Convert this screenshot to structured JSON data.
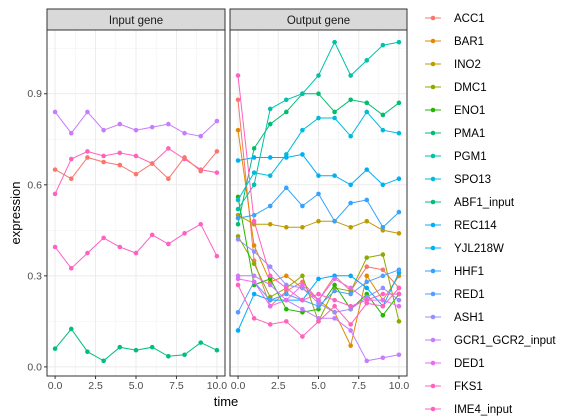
{
  "chart_data": {
    "type": "line",
    "xlabel": "time",
    "ylabel": "expression",
    "x": [
      0,
      1,
      2,
      3,
      4,
      5,
      6,
      7,
      8,
      9,
      10
    ],
    "xticks": [
      "0.0",
      "2.5",
      "5.0",
      "7.5",
      "10.0"
    ],
    "xtick_values": [
      0,
      2.5,
      5,
      7.5,
      10
    ],
    "yticks": [
      "0.0",
      "0.3",
      "0.6",
      "0.9"
    ],
    "ytick_values": [
      0,
      0.3,
      0.6,
      0.9
    ],
    "xlim": [
      -0.5,
      10.5
    ],
    "ylim": [
      -0.03,
      1.11
    ],
    "grid": true,
    "legend_position": "right",
    "facets": [
      {
        "label": "Input gene",
        "series": [
          {
            "name": "ABF1_input",
            "color": "#00BF7D",
            "values": [
              0.06,
              0.125,
              0.05,
              0.02,
              0.065,
              0.055,
              0.065,
              0.035,
              0.04,
              0.08,
              0.055
            ]
          },
          {
            "name": "GCR1_GCR2_input",
            "color": "#C77CFF",
            "values": [
              0.84,
              0.77,
              0.84,
              0.78,
              0.8,
              0.78,
              0.79,
              0.8,
              0.77,
              0.76,
              0.81
            ]
          },
          {
            "name": "IME4_input",
            "color": "#FF62BC",
            "values": [
              0.57,
              0.685,
              0.71,
              0.695,
              0.705,
              0.695,
              0.67,
              0.72,
              0.685,
              0.65,
              0.64
            ]
          },
          {
            "name": "ACC1",
            "color": "#F8766D",
            "values": [
              0.65,
              0.62,
              0.69,
              0.675,
              0.665,
              0.635,
              0.67,
              0.62,
              0.69,
              0.645,
              0.71
            ]
          },
          {
            "name": "FKS1",
            "color": "#FF61C3",
            "values": [
              0.395,
              0.325,
              0.375,
              0.425,
              0.395,
              0.375,
              0.435,
              0.405,
              0.44,
              0.47,
              0.365
            ]
          }
        ]
      },
      {
        "label": "Output gene",
        "series": [
          {
            "name": "ACC1",
            "color": "#F8766D",
            "values": [
              0.88,
              0.35,
              0.2,
              0.25,
              0.28,
              0.22,
              0.3,
              0.25,
              0.33,
              0.32,
              0.26
            ]
          },
          {
            "name": "BAR1",
            "color": "#E18A00",
            "values": [
              0.78,
              0.4,
              0.28,
              0.3,
              0.26,
              0.22,
              0.18,
              0.07,
              0.3,
              0.22,
              0.3
            ]
          },
          {
            "name": "INO2",
            "color": "#BE9C00",
            "values": [
              0.5,
              0.47,
              0.47,
              0.46,
              0.46,
              0.48,
              0.48,
              0.46,
              0.48,
              0.45,
              0.44
            ]
          },
          {
            "name": "DMC1",
            "color": "#8CAB00",
            "values": [
              0.43,
              0.34,
              0.23,
              0.26,
              0.3,
              0.15,
              0.26,
              0.25,
              0.36,
              0.37,
              0.15
            ]
          },
          {
            "name": "ENO1",
            "color": "#24B700",
            "values": [
              0.56,
              0.27,
              0.29,
              0.19,
              0.18,
              0.19,
              0.27,
              0.19,
              0.24,
              0.17,
              0.24
            ]
          },
          {
            "name": "PMA1",
            "color": "#00BE70",
            "values": [
              0.47,
              0.72,
              0.8,
              0.84,
              0.9,
              0.9,
              0.84,
              0.88,
              0.87,
              0.83,
              0.87
            ]
          },
          {
            "name": "PGM1",
            "color": "#00C1AB",
            "values": [
              0.52,
              0.6,
              0.85,
              0.88,
              0.9,
              0.96,
              1.07,
              0.96,
              1.01,
              1.06,
              1.07
            ]
          },
          {
            "name": "SPO13",
            "color": "#00BBDA",
            "values": [
              0.55,
              0.64,
              0.63,
              0.7,
              0.78,
              0.82,
              0.82,
              0.76,
              0.84,
              0.78,
              0.77
            ]
          },
          {
            "name": "REC114",
            "color": "#00ACFC",
            "values": [
              0.12,
              0.24,
              0.22,
              0.22,
              0.22,
              0.29,
              0.3,
              0.3,
              0.26,
              0.2,
              0.31
            ]
          },
          {
            "name": "YJL218W",
            "color": "#00B0F6",
            "values": [
              0.68,
              0.69,
              0.69,
              0.69,
              0.7,
              0.63,
              0.63,
              0.6,
              0.65,
              0.6,
              0.62
            ]
          },
          {
            "name": "HHF1",
            "color": "#35A2FF",
            "values": [
              0.49,
              0.5,
              0.53,
              0.59,
              0.53,
              0.57,
              0.48,
              0.54,
              0.55,
              0.46,
              0.51
            ]
          },
          {
            "name": "RED1",
            "color": "#529EFF",
            "values": [
              0.18,
              0.28,
              0.22,
              0.24,
              0.22,
              0.2,
              0.25,
              0.24,
              0.28,
              0.3,
              0.32
            ]
          },
          {
            "name": "ASH1",
            "color": "#9590FF",
            "values": [
              0.42,
              0.38,
              0.33,
              0.27,
              0.26,
              0.21,
              0.18,
              0.19,
              0.23,
              0.26,
              0.22
            ]
          },
          {
            "name": "GCR1_GCR2_input",
            "color": "#C77CFF",
            "values": [
              0.3,
              0.3,
              0.27,
              0.22,
              0.19,
              0.16,
              0.16,
              0.12,
              0.02,
              0.03,
              0.04
            ]
          },
          {
            "name": "DED1",
            "color": "#E76BF3",
            "values": [
              0.29,
              0.28,
              0.2,
              0.22,
              0.27,
              0.22,
              0.29,
              0.26,
              0.22,
              0.22,
              0.2
            ]
          },
          {
            "name": "FKS1",
            "color": "#FF61C3",
            "values": [
              0.96,
              0.48,
              0.3,
              0.26,
              0.22,
              0.24,
              0.22,
              0.2,
              0.22,
              0.24,
              0.24
            ]
          },
          {
            "name": "IME4_input",
            "color": "#FF62BC",
            "values": [
              0.27,
              0.16,
              0.14,
              0.15,
              0.1,
              0.15,
              0.2,
              0.14,
              0.21,
              0.2,
              0.26
            ]
          }
        ]
      }
    ],
    "legend": [
      {
        "name": "ACC1",
        "color": "#F8766D"
      },
      {
        "name": "BAR1",
        "color": "#E18A00"
      },
      {
        "name": "INO2",
        "color": "#BE9C00"
      },
      {
        "name": "DMC1",
        "color": "#8CAB00"
      },
      {
        "name": "ENO1",
        "color": "#24B700"
      },
      {
        "name": "PMA1",
        "color": "#00BE70"
      },
      {
        "name": "PGM1",
        "color": "#00C1AB"
      },
      {
        "name": "SPO13",
        "color": "#00BBDA"
      },
      {
        "name": "ABF1_input",
        "color": "#00BF7D"
      },
      {
        "name": "REC114",
        "color": "#00ACFC"
      },
      {
        "name": "YJL218W",
        "color": "#00B0F6"
      },
      {
        "name": "HHF1",
        "color": "#35A2FF"
      },
      {
        "name": "RED1",
        "color": "#529EFF"
      },
      {
        "name": "ASH1",
        "color": "#9590FF"
      },
      {
        "name": "GCR1_GCR2_input",
        "color": "#C77CFF"
      },
      {
        "name": "DED1",
        "color": "#E76BF3"
      },
      {
        "name": "FKS1",
        "color": "#FF61C3"
      },
      {
        "name": "IME4_input",
        "color": "#FF62BC"
      }
    ]
  }
}
